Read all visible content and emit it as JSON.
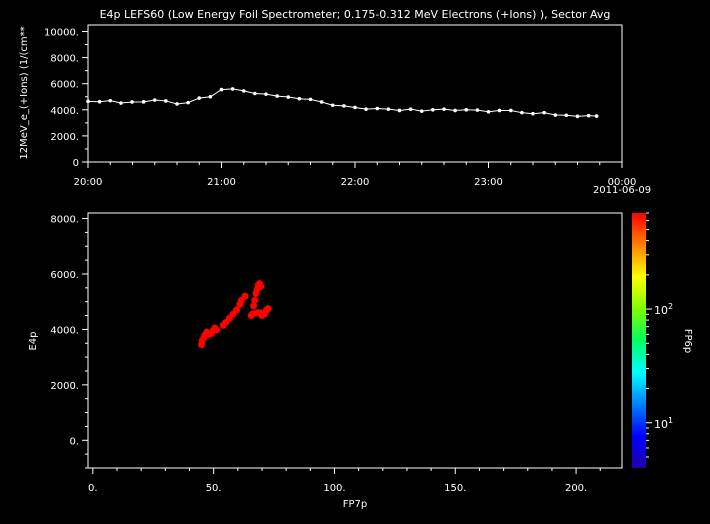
{
  "chart_data": [
    {
      "type": "line",
      "title": "E4p LEFS60 (Low Energy Foil Spectrometer; 0.175-0.312 MeV Electrons (+Ions) ), Sector Avg",
      "ylabel": "12MeV_e_(+Ions) (1/(cm**",
      "xlim_hours": [
        20.0,
        24.0
      ],
      "ylim": [
        0,
        10500
      ],
      "x_ticks": [
        "20:00",
        "21:00",
        "22:00",
        "23:00",
        "00:00"
      ],
      "x_date_label": "2011-06-09",
      "y_ticks": [
        "0",
        "2000.",
        "4000.",
        "6000.",
        "8000.",
        "10000."
      ],
      "color": "#ffffff",
      "marker": "circle",
      "x_hours": [
        20.0,
        20.087,
        20.167,
        20.247,
        20.33,
        20.417,
        20.5,
        20.583,
        20.667,
        20.75,
        20.833,
        20.917,
        21.0,
        21.083,
        21.167,
        21.25,
        21.333,
        21.417,
        21.5,
        21.583,
        21.667,
        21.75,
        21.833,
        21.917,
        22.0,
        22.083,
        22.167,
        22.25,
        22.333,
        22.417,
        22.5,
        22.583,
        22.667,
        22.75,
        22.833,
        22.917,
        23.0,
        23.083,
        23.167,
        23.25,
        23.333,
        23.417,
        23.5,
        23.583,
        23.667,
        23.75,
        23.81
      ],
      "values": [
        4650,
        4620,
        4700,
        4520,
        4600,
        4610,
        4750,
        4680,
        4450,
        4550,
        4900,
        5000,
        5550,
        5600,
        5450,
        5250,
        5200,
        5050,
        4980,
        4850,
        4800,
        4600,
        4350,
        4300,
        4180,
        4050,
        4100,
        4050,
        3950,
        4050,
        3900,
        4000,
        4050,
        3950,
        4000,
        3980,
        3850,
        3950,
        3950,
        3780,
        3700,
        3780,
        3600,
        3580,
        3500,
        3550,
        3520
      ]
    },
    {
      "type": "scatter",
      "xlabel": "FP7p",
      "ylabel": "E4p",
      "xlim": [
        -2,
        219
      ],
      "ylim": [
        -1000,
        8200
      ],
      "x_ticks": [
        "0.",
        "50.",
        "100.",
        "150.",
        "200."
      ],
      "y_ticks": [
        "0.",
        "2000.",
        "4000.",
        "6000.",
        "8000."
      ],
      "point_color": "#ff0000",
      "points": [
        [
          45.0,
          3450
        ],
        [
          45.3,
          3600
        ],
        [
          46.0,
          3700
        ],
        [
          46.5,
          3800
        ],
        [
          47.2,
          3900
        ],
        [
          48.0,
          3820
        ],
        [
          49.0,
          3850
        ],
        [
          49.8,
          3950
        ],
        [
          50.5,
          4050
        ],
        [
          51.2,
          3980
        ],
        [
          54.0,
          4150
        ],
        [
          55.0,
          4250
        ],
        [
          56.5,
          4400
        ],
        [
          58.0,
          4550
        ],
        [
          59.5,
          4700
        ],
        [
          60.8,
          4900
        ],
        [
          61.5,
          5050
        ],
        [
          63.0,
          5200
        ],
        [
          65.5,
          4500
        ],
        [
          66.0,
          4550
        ],
        [
          66.5,
          4850
        ],
        [
          67.0,
          5050
        ],
        [
          67.5,
          5300
        ],
        [
          68.0,
          5450
        ],
        [
          68.5,
          5600
        ],
        [
          69.0,
          5650
        ],
        [
          69.5,
          5550
        ],
        [
          69.0,
          4600
        ],
        [
          70.0,
          4500
        ],
        [
          71.0,
          4550
        ],
        [
          71.5,
          4650
        ],
        [
          72.0,
          4700
        ],
        [
          72.5,
          4750
        ],
        [
          67.8,
          4600
        ]
      ],
      "colorbar": {
        "label": "FP6p",
        "scale": "log",
        "ticks": [
          {
            "base": "10",
            "exp": "1",
            "value": 10
          },
          {
            "base": "10",
            "exp": "2",
            "value": 100
          }
        ],
        "range": [
          4,
          700
        ],
        "colors": [
          "#2200aa",
          "#0000ff",
          "#0080ff",
          "#00ffff",
          "#00ff60",
          "#80ff00",
          "#ffff00",
          "#ff8000",
          "#ff0000"
        ]
      }
    }
  ]
}
